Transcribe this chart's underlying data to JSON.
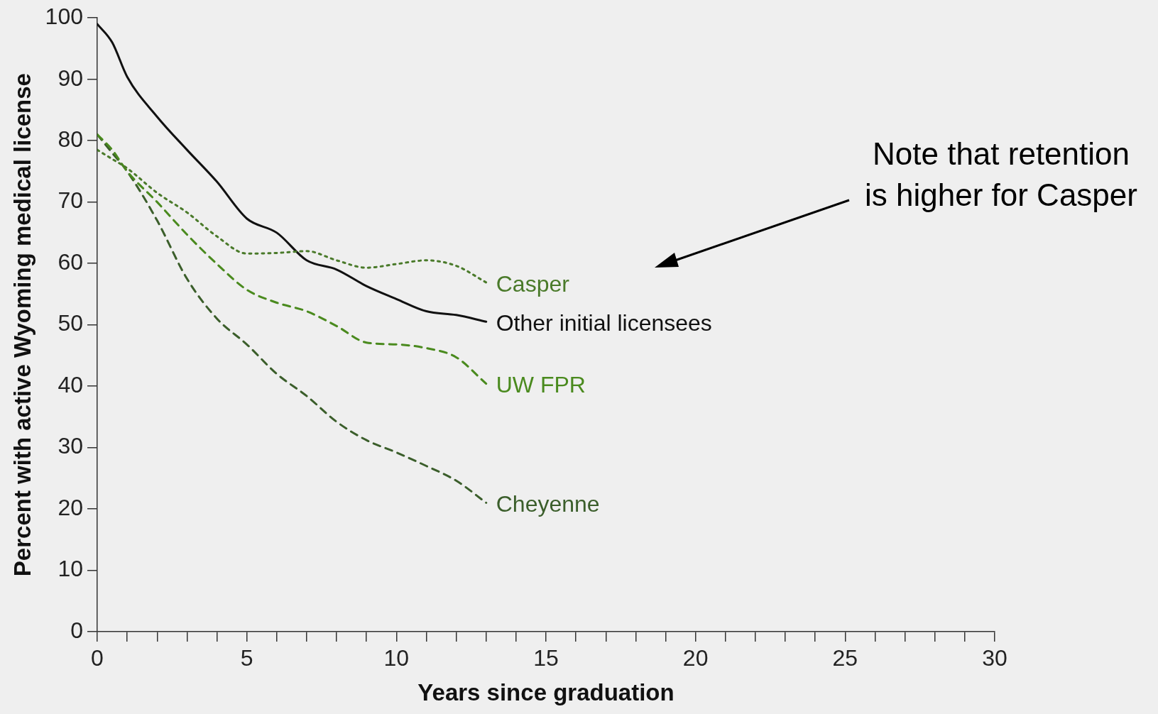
{
  "chart_data": {
    "type": "line",
    "xlabel": "Years since graduation",
    "ylabel": "Percent with active Wyoming medical license",
    "xlim": [
      0,
      30
    ],
    "ylim": [
      0,
      100
    ],
    "xticks": [
      0,
      {
        "value": 1,
        "label": null
      },
      {
        "value": 2,
        "label": null
      },
      {
        "value": 3,
        "label": null
      },
      {
        "value": 4,
        "label": null
      },
      5,
      {
        "value": 6,
        "label": null
      },
      {
        "value": 7,
        "label": null
      },
      {
        "value": 8,
        "label": null
      },
      {
        "value": 9,
        "label": null
      },
      10,
      {
        "value": 11,
        "label": null
      },
      {
        "value": 12,
        "label": null
      },
      {
        "value": 13,
        "label": null
      },
      {
        "value": 14,
        "label": null
      },
      15,
      {
        "value": 16,
        "label": null
      },
      {
        "value": 17,
        "label": null
      },
      {
        "value": 18,
        "label": null
      },
      {
        "value": 19,
        "label": null
      },
      20,
      {
        "value": 21,
        "label": null
      },
      {
        "value": 22,
        "label": null
      },
      {
        "value": 23,
        "label": null
      },
      {
        "value": 24,
        "label": null
      },
      25,
      {
        "value": 26,
        "label": null
      },
      {
        "value": 27,
        "label": null
      },
      {
        "value": 28,
        "label": null
      },
      {
        "value": 29,
        "label": null
      },
      30
    ],
    "yticks": [
      0,
      10,
      20,
      30,
      40,
      50,
      60,
      70,
      80,
      90,
      100
    ],
    "x": [
      0,
      0.5,
      1,
      2,
      3,
      4,
      5,
      6,
      7,
      8,
      9,
      10,
      11,
      12,
      13
    ],
    "grid": false,
    "legend": false,
    "marker": "none",
    "series": [
      {
        "name": "Casper",
        "color": "#4a7a2a",
        "line_style": "dotted",
        "values": [
          78.5,
          77,
          75.5,
          71.5,
          68.3,
          64.4,
          61.6,
          61.7,
          62,
          60.5,
          59.3,
          59.9,
          60.5,
          59.6,
          56.9
        ]
      },
      {
        "name": "Other initial licensees",
        "color": "#111111",
        "line_style": "solid",
        "values": [
          99,
          96,
          90.4,
          83.9,
          78.5,
          73.3,
          67.3,
          65,
          60.5,
          59,
          56.3,
          54.2,
          52.2,
          51.6,
          50.5
        ]
      },
      {
        "name": "UW FPR",
        "color": "#4a8a1e",
        "line_style": "dashed",
        "values": [
          81,
          78.5,
          75,
          70,
          64.7,
          59.9,
          55.7,
          53.6,
          52.2,
          49.8,
          47.1,
          46.8,
          46.2,
          44.7,
          40.4
        ]
      },
      {
        "name": "Cheyenne",
        "color": "#3b5e2b",
        "line_style": "dashed",
        "values": [
          81,
          78,
          75,
          67,
          57.5,
          51,
          46.8,
          42,
          38.4,
          34.2,
          31.2,
          29.2,
          27,
          24.6,
          21
        ]
      }
    ],
    "annotations": [
      "Note that retention is higher for Casper"
    ]
  }
}
